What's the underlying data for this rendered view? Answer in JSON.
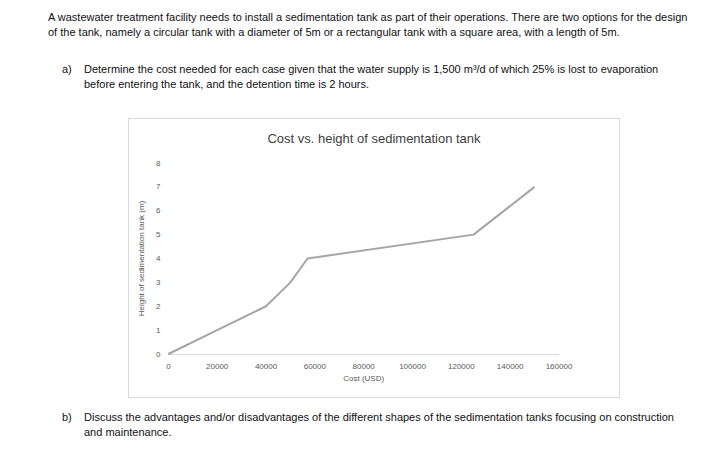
{
  "problem": {
    "intro": "A wastewater treatment facility needs to install a sedimentation tank as part of their operations. There are two options for the design of the tank, namely a circular tank with a diameter of 5m or a rectangular tank with a square area, with a length of 5m.",
    "parts": [
      {
        "label": "a)",
        "text": "Determine the cost needed for each case given that the water supply is 1,500 m³/d of which 25% is lost to evaporation before entering the tank, and the detention time is 2 hours."
      },
      {
        "label": "b)",
        "text": "Discuss the advantages and/or disadvantages of the different shapes of the sedimentation tanks focusing on construction and maintenance."
      }
    ]
  },
  "chart_data": {
    "type": "line",
    "title": "Cost vs. height of sedimentation tank",
    "x_label": "Cost (USD)",
    "y_label": "Height of sedimentation tank (m)",
    "x": [
      0,
      20000,
      40000,
      50000,
      57000,
      125000,
      150000
    ],
    "values": [
      0,
      1,
      2,
      3,
      4,
      5,
      7
    ],
    "color": "#a5a5a5",
    "xlim": [
      0,
      160000
    ],
    "xticks": [
      0,
      20000,
      40000,
      60000,
      80000,
      100000,
      120000,
      140000,
      160000
    ],
    "ylim": [
      0,
      8
    ],
    "yticks": [
      0,
      1,
      2,
      3,
      4,
      5,
      6,
      7,
      8
    ],
    "grid": false
  }
}
